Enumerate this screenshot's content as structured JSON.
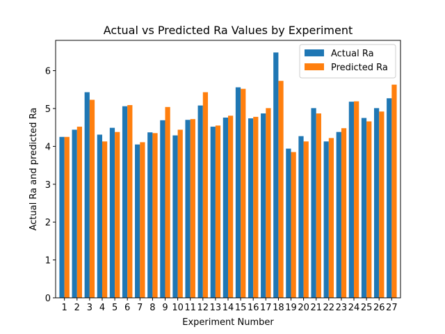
{
  "chart_data": {
    "type": "bar",
    "title": "Actual vs Predicted Ra Values by Experiment",
    "xlabel": "Experiment Number",
    "ylabel": "Actual Ra and predicted Ra",
    "ylim": [
      0,
      6.8
    ],
    "yticks": [
      0,
      1,
      2,
      3,
      4,
      5,
      6
    ],
    "grid": false,
    "legend_position": "top-right",
    "categories": [
      "1",
      "2",
      "3",
      "4",
      "5",
      "6",
      "7",
      "8",
      "9",
      "10",
      "11",
      "12",
      "13",
      "14",
      "15",
      "16",
      "17",
      "18",
      "19",
      "20",
      "21",
      "22",
      "23",
      "24",
      "25",
      "26",
      "27"
    ],
    "series": [
      {
        "name": "Actual Ra",
        "color": "#1f77b4",
        "values": [
          4.25,
          4.44,
          5.43,
          4.31,
          4.49,
          5.06,
          4.05,
          4.37,
          4.69,
          4.29,
          4.7,
          5.08,
          4.52,
          4.76,
          5.56,
          4.74,
          4.87,
          6.48,
          3.94,
          4.27,
          5.01,
          4.13,
          4.38,
          5.18,
          4.75,
          5.01,
          5.27
        ]
      },
      {
        "name": "Predicted Ra",
        "color": "#ff7f0e",
        "values": [
          4.25,
          4.52,
          5.23,
          4.13,
          4.38,
          5.09,
          4.11,
          4.35,
          5.04,
          4.44,
          4.72,
          5.43,
          4.55,
          4.81,
          5.52,
          4.78,
          5.01,
          5.73,
          3.85,
          4.13,
          4.87,
          4.22,
          4.48,
          5.19,
          4.66,
          4.92,
          5.63
        ]
      }
    ]
  }
}
